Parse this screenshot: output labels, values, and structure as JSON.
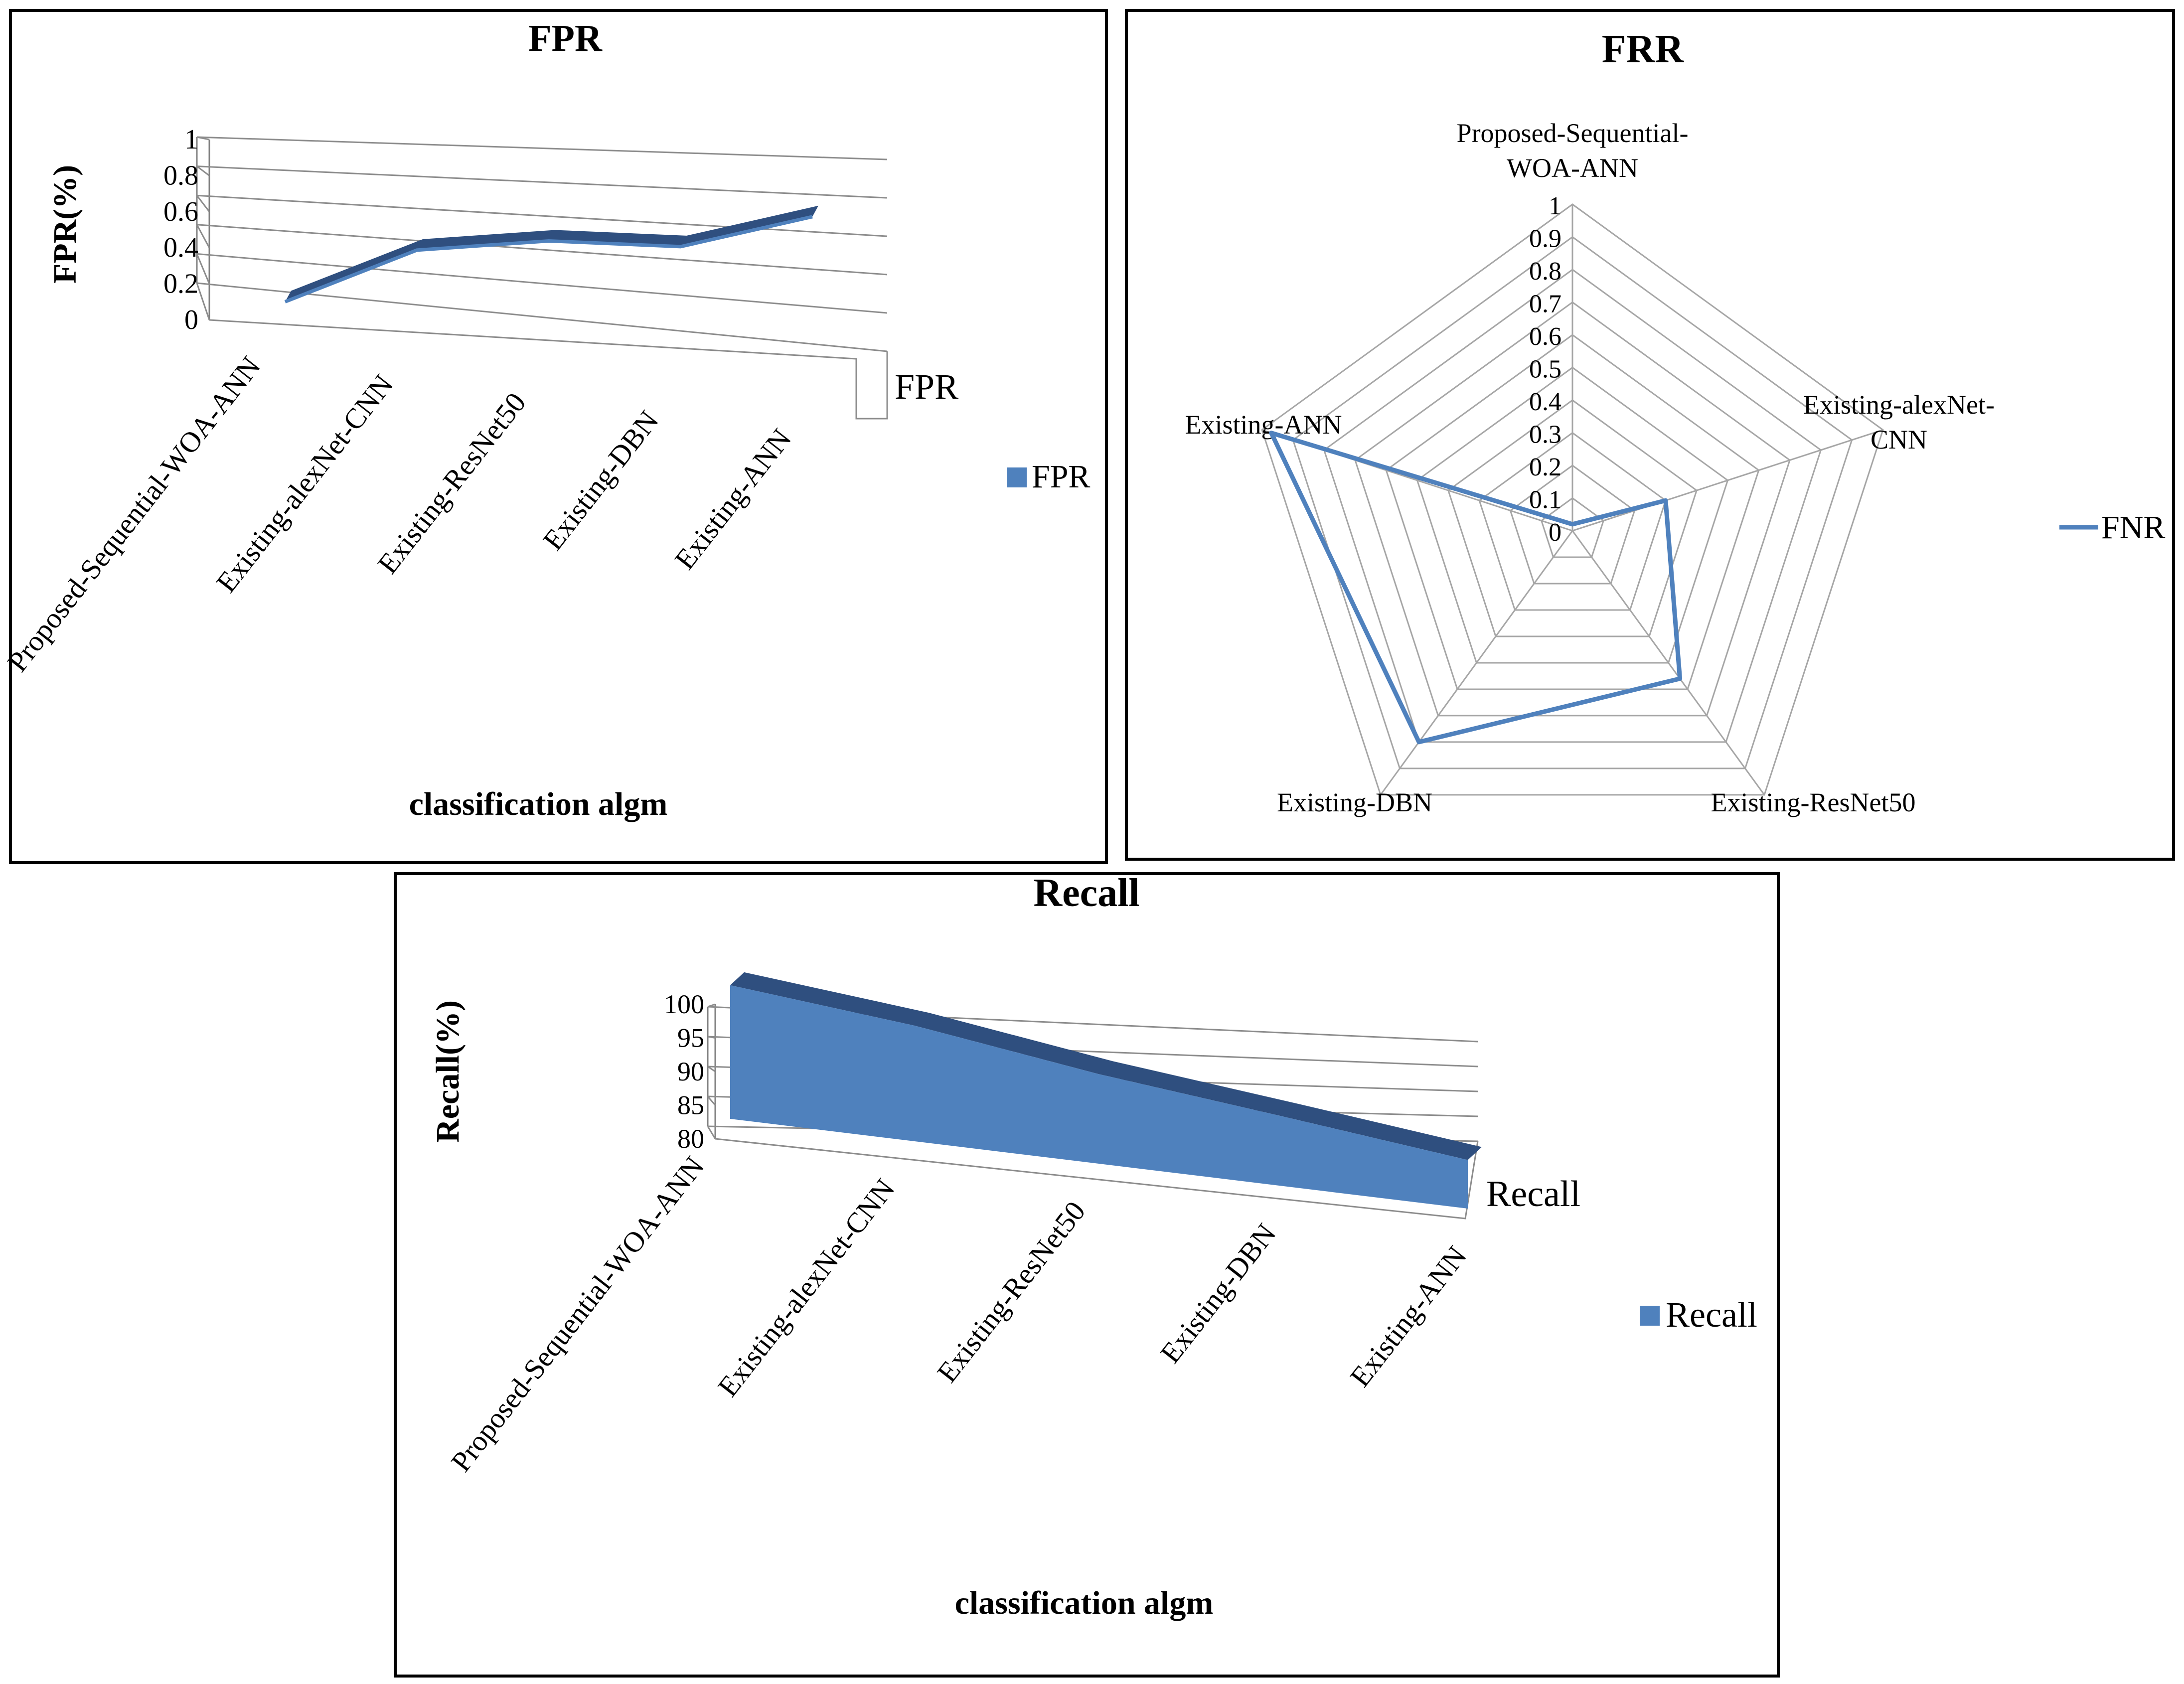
{
  "chart_data": [
    {
      "type": "line",
      "title": "FPR",
      "xlabel": "classification algm",
      "ylabel": "FPR(%)",
      "ylim": [
        0,
        1
      ],
      "yticks": [
        "0",
        "0.2",
        "0.4",
        "0.6",
        "0.8",
        "1"
      ],
      "categories": [
        "Proposed-Sequential-WOA-ANN",
        "Existing-alexNet-CNN",
        "Existing-ResNet50",
        "Existing-DBN",
        "Existing-ANN"
      ],
      "series": [
        {
          "name": "FPR",
          "values": [
            0.05,
            0.42,
            0.53,
            0.55,
            0.78
          ]
        }
      ],
      "depth_label": "FPR",
      "legend": "right",
      "grid": true,
      "three_d": true,
      "color": "#4f81bd",
      "shade_color": "#2f4f7f"
    },
    {
      "type": "radar",
      "title": "FRR",
      "rlim": [
        0,
        1
      ],
      "rticks": [
        "0",
        "0.1",
        "0.2",
        "0.3",
        "0.4",
        "0.5",
        "0.6",
        "0.7",
        "0.8",
        "0.9",
        "1"
      ],
      "axes": [
        {
          "lines": [
            "Proposed-Sequential-",
            "WOA-ANN"
          ]
        },
        {
          "lines": [
            "Existing-alexNet-",
            "CNN"
          ]
        },
        {
          "lines": [
            "Existing-ResNet50"
          ]
        },
        {
          "lines": [
            "Existing-DBN"
          ]
        },
        {
          "lines": [
            "Existing-ANN"
          ]
        }
      ],
      "series": [
        {
          "name": "FNR",
          "values": [
            0.02,
            0.3,
            0.56,
            0.8,
            0.97
          ]
        }
      ],
      "legend": "right",
      "color": "#4f81bd"
    },
    {
      "type": "area",
      "title": "Recall",
      "xlabel": "classification algm",
      "ylabel": "Recall(%)",
      "ylim": [
        80,
        100
      ],
      "yticks": [
        "80",
        "85",
        "90",
        "95",
        "100"
      ],
      "categories": [
        "Proposed-Sequential-WOA-ANN",
        "Existing-alexNet-CNN",
        "Existing-ResNet50",
        "Existing-DBN",
        "Existing-ANN"
      ],
      "series": [
        {
          "name": "Recall",
          "values": [
            99.5,
            96.5,
            92.5,
            89.5,
            86.5
          ]
        }
      ],
      "depth_label": "Recall",
      "legend": "right",
      "grid": true,
      "three_d": true,
      "color": "#4f81bd",
      "shade_color": "#2f4f7f"
    }
  ]
}
